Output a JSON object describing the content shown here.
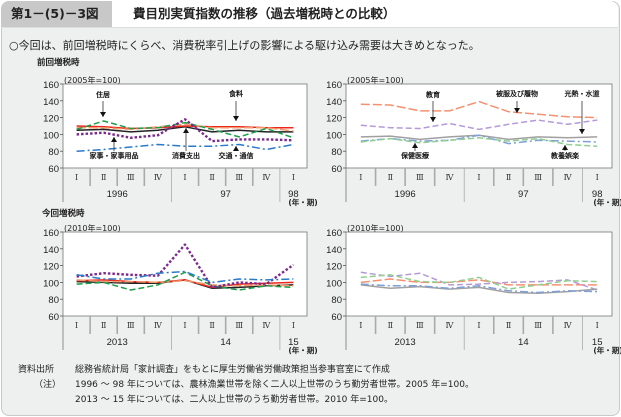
{
  "header": {
    "figure_no": "第1－(5)－3図",
    "title": "費目別実質指数の推移（過去増税時との比較）"
  },
  "lead": "○今回は、前回増税時にくらべ、消費税率引上げの影響による駆け込み需要は大きめとなった。",
  "sections": {
    "previous": "前回増税時",
    "current": "今回増税時"
  },
  "footer": {
    "source_label": "資料出所",
    "source_text": "総務省統計局「家計調査」をもとに厚生労働省労働政策担当参事官室にて作成",
    "note_label": "（注）",
    "note1": "1996 ～ 98 年については、農林漁業世帯を除く二人以上世帯のうち勤労者世帯。2005 年=100。",
    "note2": "2013 ～ 15 年については、二人以上世帯のうち勤労者世帯。2010 年=100。"
  },
  "chart_data": [
    {
      "type": "line",
      "unit_label": "(2005年=100)",
      "ylim": [
        60,
        160
      ],
      "yticks": [
        "60",
        "80",
        "100",
        "120",
        "140",
        "160"
      ],
      "quarters": [
        "Ⅰ",
        "Ⅱ",
        "Ⅲ",
        "Ⅳ",
        "Ⅰ",
        "Ⅱ",
        "Ⅲ",
        "Ⅳ",
        "Ⅰ"
      ],
      "years": [
        "1996",
        "97",
        "98"
      ],
      "xlabel": "(年・期)",
      "series": [
        {
          "label": "消費支出",
          "color": "#222222",
          "dash": "solid",
          "values": [
            105,
            106,
            103,
            105,
            109,
            103,
            105,
            103,
            103
          ]
        },
        {
          "label": "食料",
          "color": "#e8281e",
          "dash": "solid",
          "values": [
            110,
            109,
            107,
            108,
            110,
            109,
            109,
            108,
            108
          ]
        },
        {
          "label": null,
          "color": "#f39a6a",
          "dash": "longdash",
          "values": [
            108,
            108,
            106,
            109,
            112,
            108,
            108,
            108,
            104
          ]
        },
        {
          "label": "住居",
          "color": "#1e9e4a",
          "dash": "dash",
          "values": [
            106,
            116,
            107,
            108,
            114,
            106,
            97,
            107,
            96
          ]
        },
        {
          "label": "家事・家事用品",
          "color": "#7b2a8c",
          "dash": "dot",
          "values": [
            100,
            102,
            96,
            99,
            118,
            92,
            94,
            94,
            93
          ]
        },
        {
          "label": "交通・通信",
          "color": "#2a7acb",
          "dash": "dashdot",
          "values": [
            80,
            82,
            85,
            88,
            86,
            86,
            88,
            82,
            88
          ]
        }
      ],
      "annotations": [
        "住居",
        "食料",
        "家事・家事用品",
        "消費支出",
        "交通・通信"
      ]
    },
    {
      "type": "line",
      "unit_label": "(2005年=100)",
      "ylim": [
        60,
        160
      ],
      "yticks": [
        "60",
        "80",
        "100",
        "120",
        "140",
        "160"
      ],
      "quarters": [
        "Ⅰ",
        "Ⅱ",
        "Ⅲ",
        "Ⅳ",
        "Ⅰ",
        "Ⅱ",
        "Ⅲ",
        "Ⅳ",
        "Ⅰ"
      ],
      "years": [
        "1996",
        "97",
        "98"
      ],
      "xlabel": "(年・期)",
      "series": [
        {
          "label": "被服及び履物",
          "color": "#f59070",
          "dash": "longdash",
          "values": [
            136,
            135,
            128,
            128,
            139,
            127,
            124,
            121,
            120
          ]
        },
        {
          "label": "教育",
          "color": "#b49ad8",
          "dash": "dash",
          "values": [
            111,
            108,
            107,
            113,
            106,
            112,
            117,
            112,
            117
          ]
        },
        {
          "label": "光熱・水道",
          "color": "#a0a0a0",
          "dash": "solid",
          "values": [
            97,
            98,
            94,
            97,
            99,
            94,
            97,
            96,
            97
          ]
        },
        {
          "label": "教養娯楽",
          "color": "#7f9fd8",
          "dash": "dashdot",
          "values": [
            92,
            95,
            92,
            93,
            99,
            89,
            93,
            92,
            91
          ]
        },
        {
          "label": "保健医療",
          "color": "#8fcf8f",
          "dash": "dash",
          "values": [
            91,
            95,
            90,
            93,
            96,
            92,
            95,
            88,
            86
          ]
        }
      ],
      "annotations": [
        "教育",
        "被服及び履物",
        "光熱・水道",
        "保健医療",
        "教養娯楽"
      ]
    },
    {
      "type": "line",
      "unit_label": "(2010年=100)",
      "ylim": [
        60,
        160
      ],
      "yticks": [
        "60",
        "80",
        "100",
        "120",
        "140",
        "160"
      ],
      "quarters": [
        "Ⅰ",
        "Ⅱ",
        "Ⅲ",
        "Ⅳ",
        "Ⅰ",
        "Ⅱ",
        "Ⅲ",
        "Ⅳ",
        "Ⅰ"
      ],
      "years": [
        "2013",
        "14",
        "15"
      ],
      "xlabel": "(年・期)",
      "series": [
        {
          "label": "消費支出",
          "color": "#222222",
          "dash": "solid",
          "values": [
            101,
            100,
            99,
            99,
            103,
            93,
            94,
            96,
            97
          ]
        },
        {
          "label": "食料",
          "color": "#e8281e",
          "dash": "solid",
          "values": [
            102,
            103,
            101,
            100,
            103,
            94,
            98,
            99,
            100
          ]
        },
        {
          "label": null,
          "color": "#f39a6a",
          "dash": "longdash",
          "values": [
            103,
            101,
            101,
            100,
            102,
            97,
            96,
            97,
            96
          ]
        },
        {
          "label": "住居",
          "color": "#1e9e4a",
          "dash": "dash",
          "values": [
            98,
            100,
            91,
            97,
            112,
            96,
            91,
            96,
            94
          ]
        },
        {
          "label": "家事・家事用品",
          "color": "#7b2a8c",
          "dash": "dot",
          "values": [
            107,
            111,
            109,
            108,
            145,
            94,
            100,
            98,
            121
          ]
        },
        {
          "label": "交通・通信",
          "color": "#2a7acb",
          "dash": "dashdot",
          "values": [
            109,
            104,
            104,
            111,
            113,
            100,
            104,
            103,
            104
          ]
        }
      ],
      "annotations": []
    },
    {
      "type": "line",
      "unit_label": "(2010年=100)",
      "ylim": [
        60,
        160
      ],
      "yticks": [
        "60",
        "80",
        "100",
        "120",
        "140",
        "160"
      ],
      "quarters": [
        "Ⅰ",
        "Ⅱ",
        "Ⅲ",
        "Ⅳ",
        "Ⅰ",
        "Ⅱ",
        "Ⅲ",
        "Ⅳ",
        "Ⅰ"
      ],
      "years": [
        "2013",
        "14",
        "15"
      ],
      "xlabel": "(年・期)",
      "series": [
        {
          "label": "被服及び履物",
          "color": "#f59070",
          "dash": "longdash",
          "values": [
            100,
            104,
            100,
            100,
            103,
            97,
            97,
            97,
            97
          ]
        },
        {
          "label": "教育",
          "color": "#b49ad8",
          "dash": "dash",
          "values": [
            112,
            107,
            111,
            97,
            98,
            100,
            101,
            103,
            91
          ]
        },
        {
          "label": "光熱・水道",
          "color": "#a0a0a0",
          "dash": "solid",
          "values": [
            97,
            93,
            95,
            92,
            94,
            88,
            87,
            89,
            92
          ]
        },
        {
          "label": "教養娯楽",
          "color": "#7f9fd8",
          "dash": "dashdot",
          "values": [
            98,
            96,
            96,
            93,
            96,
            90,
            88,
            90,
            89
          ]
        },
        {
          "label": "保健医療",
          "color": "#8fcf8f",
          "dash": "dash",
          "values": [
            106,
            109,
            101,
            100,
            106,
            92,
            97,
            102,
            101
          ]
        }
      ],
      "annotations": []
    }
  ]
}
